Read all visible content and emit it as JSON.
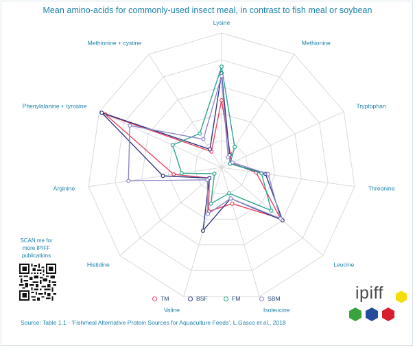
{
  "title": "Mean amino-acids for commonly-used insect meal, in contrast to fish meal or soybean",
  "chart_data": {
    "type": "radar",
    "axes": [
      "Lysine",
      "Methionine",
      "Tryptophan",
      "Threonine",
      "Leucine",
      "Isoleucine",
      "Valine",
      "Histidine",
      "Arginine",
      "Phenylalanine + tyrosine",
      "Methionine + cystine"
    ],
    "rmax": 10,
    "rings": 5,
    "grid": true,
    "legend_position": "bottom",
    "series": [
      {
        "name": "TM",
        "color": "#e8405d",
        "values": [
          5.0,
          1.2,
          0.8,
          2.6,
          5.8,
          2.8,
          3.4,
          1.2,
          3.6,
          9.5,
          1.4
        ]
      },
      {
        "name": "BSF",
        "color": "#2e3480",
        "values": [
          7.0,
          1.1,
          0.7,
          3.3,
          6.0,
          2.4,
          4.9,
          1.2,
          4.4,
          9.8,
          1.6
        ]
      },
      {
        "name": "FM",
        "color": "#27a58d",
        "values": [
          7.5,
          1.8,
          0.7,
          3.0,
          4.9,
          2.0,
          2.8,
          0.7,
          3.0,
          4.0,
          3.0
        ]
      },
      {
        "name": "SBM",
        "color": "#8a86c8",
        "values": [
          6.8,
          0.9,
          0.9,
          3.5,
          5.8,
          2.4,
          3.6,
          1.4,
          7.0,
          7.5,
          2.5
        ]
      }
    ]
  },
  "scan": {
    "line1": "SCAN me for",
    "line2": "more IPIFF",
    "line3": "publications"
  },
  "source": "Source: Table 1.1 - 'Fishmeal Alternative Protein Sources for Aquaculture Feeds', L.Gasco et al., 2018",
  "logo": {
    "text": "ipiff",
    "colors": [
      "#f2de0f",
      "#3aa33e",
      "#244b9c",
      "#d81e2c"
    ]
  }
}
